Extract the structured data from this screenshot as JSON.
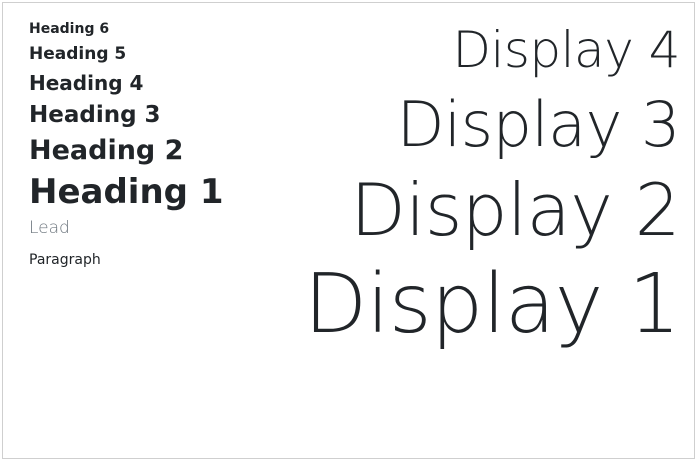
{
  "headings": {
    "h6": "Heading 6",
    "h5": "Heading 5",
    "h4": "Heading 4",
    "h3": "Heading 3",
    "h2": "Heading 2",
    "h1": "Heading 1"
  },
  "lead": "Lead",
  "paragraph": "Paragraph",
  "displays": {
    "d4": "Display 4",
    "d3": "Display 3",
    "d2": "Display 2",
    "d1": "Display 1"
  },
  "colors": {
    "text": "#212529",
    "muted": "#6c757d",
    "border": "#cfcfcf",
    "background": "#ffffff"
  }
}
